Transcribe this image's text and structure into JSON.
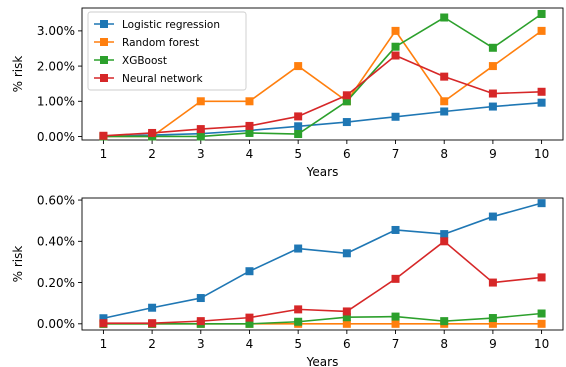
{
  "colors": {
    "Logistic regression": "#1f77b4",
    "Random forest": "#ff7f0e",
    "XGBoost": "#2ca02c",
    "Neural network": "#d62728"
  },
  "chart_data": [
    {
      "type": "line",
      "xlabel": "Years",
      "ylabel": "% risk",
      "x": [
        1,
        2,
        3,
        4,
        5,
        6,
        7,
        8,
        9,
        10
      ],
      "xticks": [
        "1",
        "2",
        "3",
        "4",
        "5",
        "6",
        "7",
        "8",
        "9",
        "10"
      ],
      "ylim": [
        -0.1,
        3.65
      ],
      "yticks": [
        0,
        1,
        2,
        3
      ],
      "ytick_labels": [
        "0.00%",
        "1.00%",
        "2.00%",
        "3.00%"
      ],
      "grid": false,
      "legend": "top-left",
      "series": [
        {
          "name": "Logistic regression",
          "values": [
            0.0,
            0.04,
            0.08,
            0.17,
            0.29,
            0.41,
            0.56,
            0.71,
            0.85,
            0.96
          ]
        },
        {
          "name": "Random forest",
          "values": [
            0.0,
            0.0,
            1.0,
            1.0,
            2.0,
            1.0,
            3.0,
            1.0,
            2.0,
            3.0
          ]
        },
        {
          "name": "XGBoost",
          "values": [
            0.0,
            0.0,
            0.0,
            0.1,
            0.07,
            1.0,
            2.55,
            3.38,
            2.52,
            3.48
          ]
        },
        {
          "name": "Neural network",
          "values": [
            0.02,
            0.1,
            0.21,
            0.3,
            0.57,
            1.17,
            2.3,
            1.7,
            1.22,
            1.27
          ]
        }
      ]
    },
    {
      "type": "line",
      "xlabel": "Years",
      "ylabel": "% risk",
      "x": [
        1,
        2,
        3,
        4,
        5,
        6,
        7,
        8,
        9,
        10
      ],
      "xticks": [
        "1",
        "2",
        "3",
        "4",
        "5",
        "6",
        "7",
        "8",
        "9",
        "10"
      ],
      "ylim": [
        -0.03,
        0.61
      ],
      "yticks": [
        0,
        0.2,
        0.4,
        0.6
      ],
      "ytick_labels": [
        "0.00%",
        "0.20%",
        "0.40%",
        "0.60%"
      ],
      "grid": false,
      "series": [
        {
          "name": "Logistic regression",
          "values": [
            0.027,
            0.078,
            0.125,
            0.255,
            0.365,
            0.342,
            0.455,
            0.435,
            0.52,
            0.585
          ]
        },
        {
          "name": "Random forest",
          "values": [
            0.0,
            0.0,
            0.0,
            0.0,
            0.0,
            0.0,
            0.0,
            0.0,
            0.0,
            0.0
          ]
        },
        {
          "name": "XGBoost",
          "values": [
            0.0,
            0.0,
            0.0,
            0.0,
            0.01,
            0.032,
            0.035,
            0.013,
            0.028,
            0.05
          ]
        },
        {
          "name": "Neural network",
          "values": [
            0.003,
            0.003,
            0.013,
            0.03,
            0.07,
            0.06,
            0.218,
            0.4,
            0.2,
            0.225
          ]
        }
      ]
    }
  ]
}
